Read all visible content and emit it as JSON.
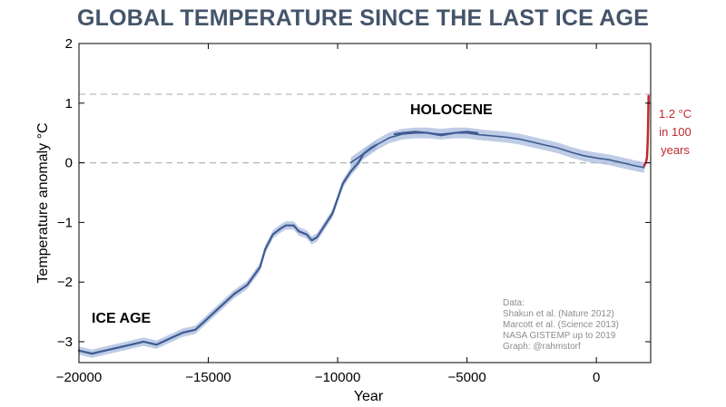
{
  "chart_data": {
    "type": "line",
    "title": "GLOBAL TEMPERATURE SINCE THE LAST ICE AGE",
    "xlabel": "Year",
    "ylabel": "Temperature anomaly °C",
    "xlim": [
      -20000,
      2100
    ],
    "ylim": [
      -3.35,
      2.0
    ],
    "xticks": [
      {
        "value": -20000,
        "label": "−20000"
      },
      {
        "value": -15000,
        "label": "−15000"
      },
      {
        "value": -10000,
        "label": "−10000"
      },
      {
        "value": -5000,
        "label": "−5000"
      },
      {
        "value": 0,
        "label": "0"
      }
    ],
    "yticks": [
      {
        "value": 2,
        "label": "2"
      },
      {
        "value": 1,
        "label": "1"
      },
      {
        "value": 0,
        "label": "0"
      },
      {
        "value": -1,
        "label": "−1"
      },
      {
        "value": -2,
        "label": "−2"
      },
      {
        "value": -3,
        "label": "−3"
      }
    ],
    "reference_lines": [
      1.15,
      0
    ],
    "colors": {
      "line": "#3e5b93",
      "band": "#a9bbde",
      "modern": "#c1272d",
      "reference": "#b3b3b3",
      "title": "#44546a"
    },
    "series": [
      {
        "x": [
          -20000,
          -19500,
          -19000,
          -18500,
          -18000,
          -17500,
          -17000,
          -16500,
          -16000,
          -15500,
          -15000,
          -14500,
          -14000,
          -13500,
          -13000,
          -12800,
          -12500,
          -12200,
          -12000,
          -11700,
          -11500,
          -11200,
          -11000,
          -10800,
          -10500,
          -10200,
          -10000,
          -9800,
          -9500,
          -9200,
          -9000,
          -8700,
          -8500
        ],
        "y": [
          -3.15,
          -3.2,
          -3.15,
          -3.1,
          -3.05,
          -3.0,
          -3.05,
          -2.95,
          -2.85,
          -2.8,
          -2.6,
          -2.4,
          -2.2,
          -2.05,
          -1.75,
          -1.45,
          -1.2,
          -1.1,
          -1.05,
          -1.05,
          -1.15,
          -1.2,
          -1.3,
          -1.25,
          -1.05,
          -0.85,
          -0.6,
          -0.35,
          -0.15,
          0.0,
          0.15,
          0.25,
          0.3
        ],
        "band_halfwidth": 0.07
      },
      {
        "x": [
          -9500,
          -9000,
          -8500,
          -8000,
          -7500,
          -7000,
          -6500,
          -6000,
          -5500,
          -5000,
          -4500,
          -4000,
          -3500,
          -3000,
          -2500,
          -2000,
          -1500,
          -1000,
          -500,
          0,
          500,
          1000,
          1500,
          1850
        ],
        "y": [
          0.0,
          0.15,
          0.3,
          0.42,
          0.48,
          0.5,
          0.5,
          0.48,
          0.5,
          0.5,
          0.47,
          0.45,
          0.43,
          0.4,
          0.35,
          0.3,
          0.25,
          0.18,
          0.12,
          0.08,
          0.05,
          0.0,
          -0.05,
          -0.08
        ],
        "band_halfwidth": 0.09
      },
      {
        "x": [
          -7800,
          -7500,
          -7000,
          -6500,
          -6000,
          -5500,
          -5000,
          -4600
        ],
        "y": [
          0.48,
          0.5,
          0.52,
          0.5,
          0.46,
          0.5,
          0.52,
          0.5
        ]
      },
      {
        "x": [
          1850,
          1880,
          1910,
          1940,
          1960,
          1980,
          2000,
          2019
        ],
        "y": [
          -0.05,
          -0.02,
          0.0,
          0.05,
          0.1,
          0.3,
          0.6,
          1.12
        ]
      }
    ],
    "annotations": {
      "holocene": "HOLOCENE",
      "ice_age": "ICE AGE",
      "warming": [
        "1.2 °C",
        "in 100",
        "years"
      ],
      "sources": [
        "Data:",
        "Shakun et al. (Nature 2012)",
        "Marcott et al. (Science 2013)",
        "NASA GISTEMP up to 2019",
        "Graph: @rahmstorf"
      ]
    }
  }
}
